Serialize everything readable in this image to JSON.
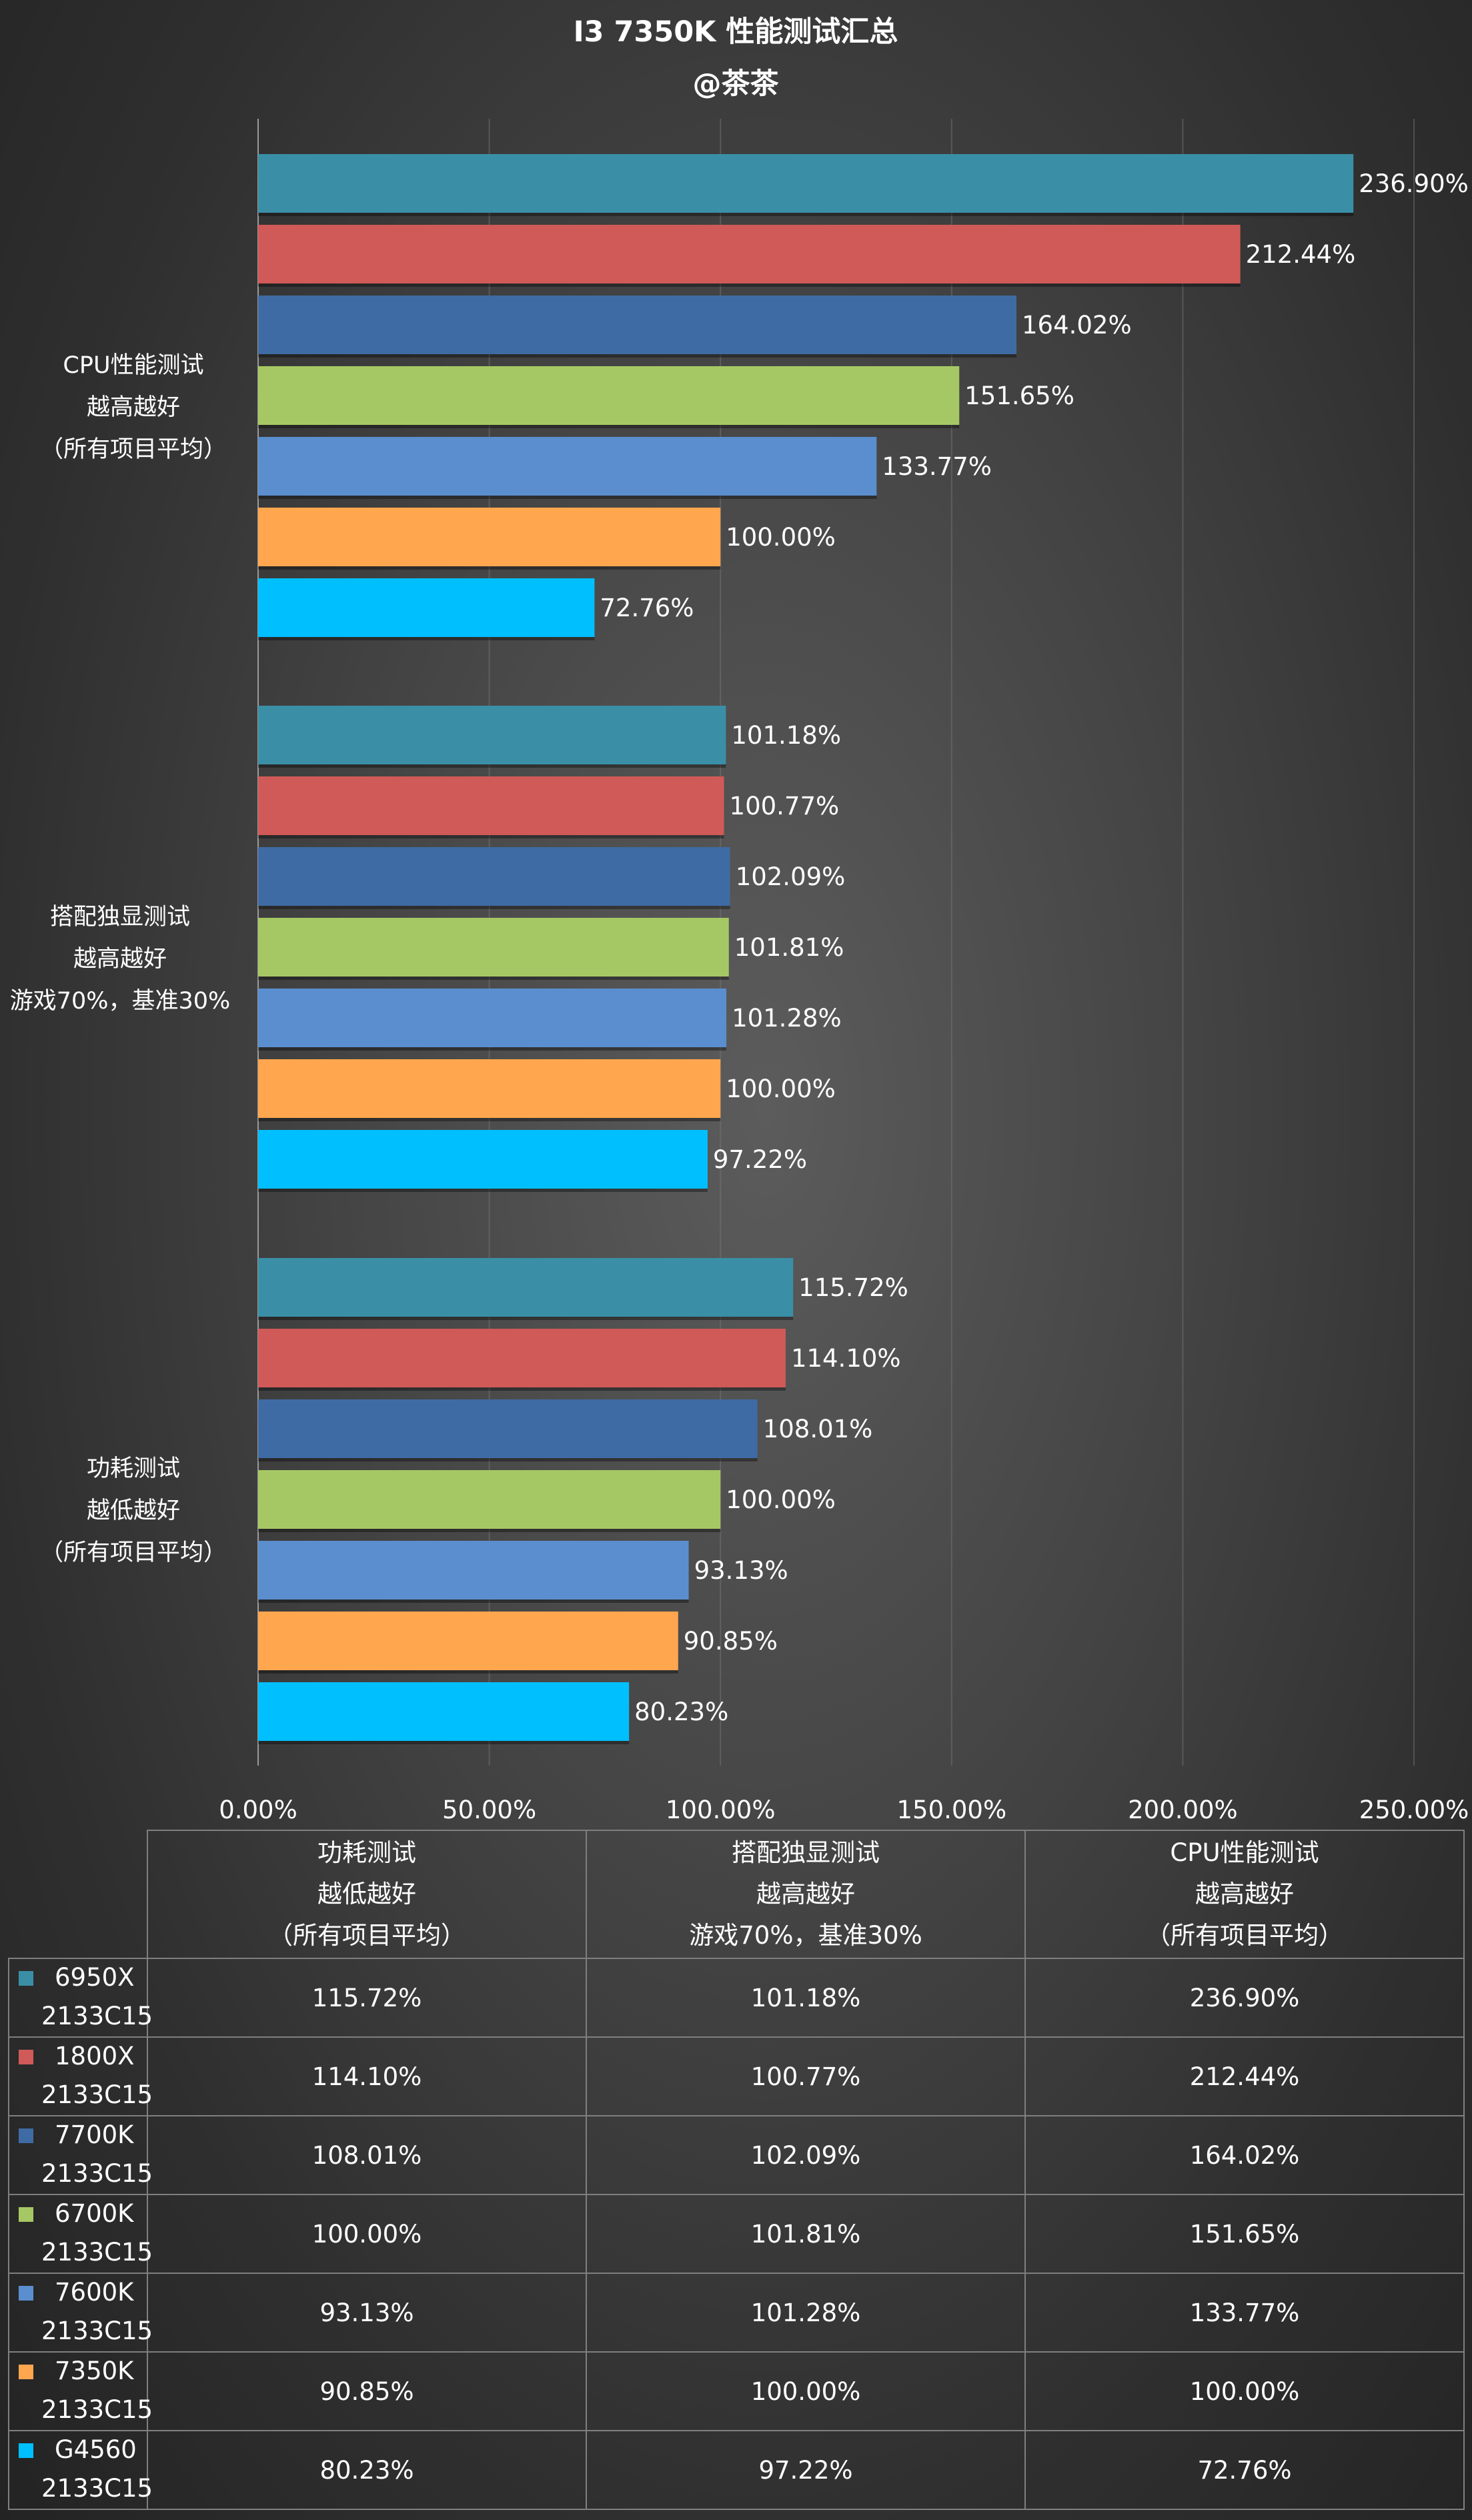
{
  "chart_data": {
    "type": "bar",
    "orientation": "horizontal",
    "title": "I3 7350K 性能测试汇总",
    "subtitle": "@茶茶",
    "xlim": [
      0,
      250
    ],
    "x_ticks": [
      "0.00%",
      "50.00%",
      "100.00%",
      "150.00%",
      "200.00%",
      "250.00%"
    ],
    "categories": [
      {
        "lines": [
          "CPU性能测试",
          "越高越好",
          "（所有项目平均）"
        ]
      },
      {
        "lines": [
          "搭配独显测试",
          "越高越好",
          "游戏70%，基准30%"
        ]
      },
      {
        "lines": [
          "功耗测试",
          "越低越好",
          "（所有项目平均）"
        ]
      }
    ],
    "series": [
      {
        "name": "6950X 2133C15",
        "color": "#3a8fa6",
        "values": [
          236.9,
          101.18,
          115.72
        ],
        "labels": [
          "236.90%",
          "101.18%",
          "115.72%"
        ]
      },
      {
        "name": "1800X 2133C15",
        "color": "#d05a57",
        "values": [
          212.44,
          100.77,
          114.1
        ],
        "labels": [
          "212.44%",
          "100.77%",
          "114.10%"
        ]
      },
      {
        "name": "7700K 2133C15",
        "color": "#3e6ba3",
        "values": [
          164.02,
          102.09,
          108.01
        ],
        "labels": [
          "164.02%",
          "102.09%",
          "108.01%"
        ]
      },
      {
        "name": "6700K 2133C15",
        "color": "#a6c864",
        "values": [
          151.65,
          101.81,
          100.0
        ],
        "labels": [
          "151.65%",
          "101.81%",
          "100.00%"
        ]
      },
      {
        "name": "7600K 2133C15",
        "color": "#5b8ecf",
        "values": [
          133.77,
          101.28,
          93.13
        ],
        "labels": [
          "133.77%",
          "101.28%",
          "93.13%"
        ]
      },
      {
        "name": "7350K 2133C15",
        "color": "#ffa64f",
        "values": [
          100.0,
          100.0,
          90.85
        ],
        "labels": [
          "100.00%",
          "100.00%",
          "90.85%"
        ]
      },
      {
        "name": "G4560 2133C15",
        "color": "#00bfff",
        "values": [
          72.76,
          97.22,
          80.23
        ],
        "labels": [
          "72.76%",
          "97.22%",
          "80.23%"
        ]
      }
    ]
  },
  "table": {
    "headers": [
      {
        "lines": [
          "功耗测试",
          "越低越好",
          "（所有项目平均）"
        ]
      },
      {
        "lines": [
          "搭配独显测试",
          "越高越好",
          "游戏70%，基准30%"
        ]
      },
      {
        "lines": [
          "CPU性能测试",
          "越高越好",
          "（所有项目平均）"
        ]
      }
    ],
    "rows": [
      {
        "line1": "6950X",
        "line2": "2133C15",
        "color": "#3a8fa6",
        "cells": [
          "115.72%",
          "101.18%",
          "236.90%"
        ]
      },
      {
        "line1": "1800X",
        "line2": "2133C15",
        "color": "#d05a57",
        "cells": [
          "114.10%",
          "100.77%",
          "212.44%"
        ]
      },
      {
        "line1": "7700K",
        "line2": "2133C15",
        "color": "#3e6ba3",
        "cells": [
          "108.01%",
          "102.09%",
          "164.02%"
        ]
      },
      {
        "line1": "6700K",
        "line2": "2133C15",
        "color": "#a6c864",
        "cells": [
          "100.00%",
          "101.81%",
          "151.65%"
        ]
      },
      {
        "line1": "7600K",
        "line2": "2133C15",
        "color": "#5b8ecf",
        "cells": [
          "93.13%",
          "101.28%",
          "133.77%"
        ]
      },
      {
        "line1": "7350K",
        "line2": "2133C15",
        "color": "#ffa64f",
        "cells": [
          "90.85%",
          "100.00%",
          "100.00%"
        ]
      },
      {
        "line1": "G4560",
        "line2": "2133C15",
        "color": "#00bfff",
        "cells": [
          "80.23%",
          "97.22%",
          "72.76%"
        ]
      }
    ]
  }
}
